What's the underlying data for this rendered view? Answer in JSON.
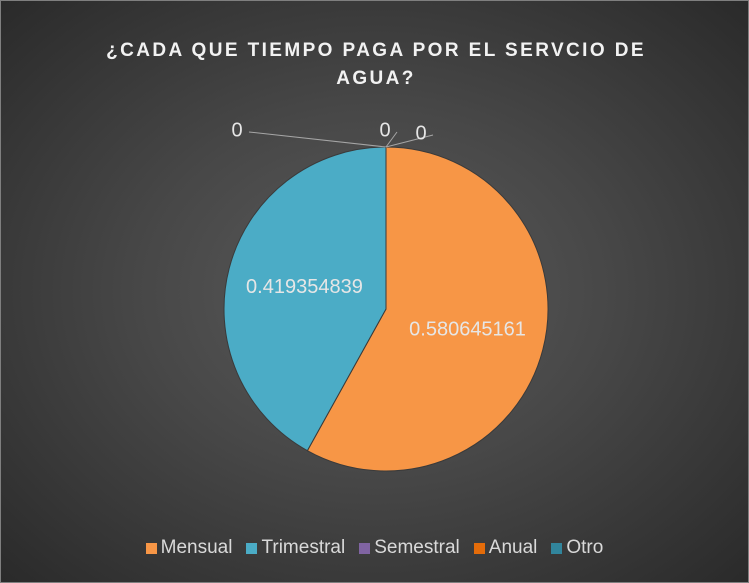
{
  "chart_data": {
    "type": "pie",
    "title": "¿CADA QUE TIEMPO PAGA POR EL SERVCIO DE AGUA?",
    "categories": [
      "Mensual",
      "Trimestral",
      "Semestral",
      "Anual",
      "Otro"
    ],
    "values": [
      0.580645161,
      0.419354839,
      0,
      0,
      0
    ],
    "colors": [
      "#f79646",
      "#4bacc6",
      "#8064a2",
      "#e46c0a",
      "#31859c"
    ],
    "legend": "bottom"
  }
}
